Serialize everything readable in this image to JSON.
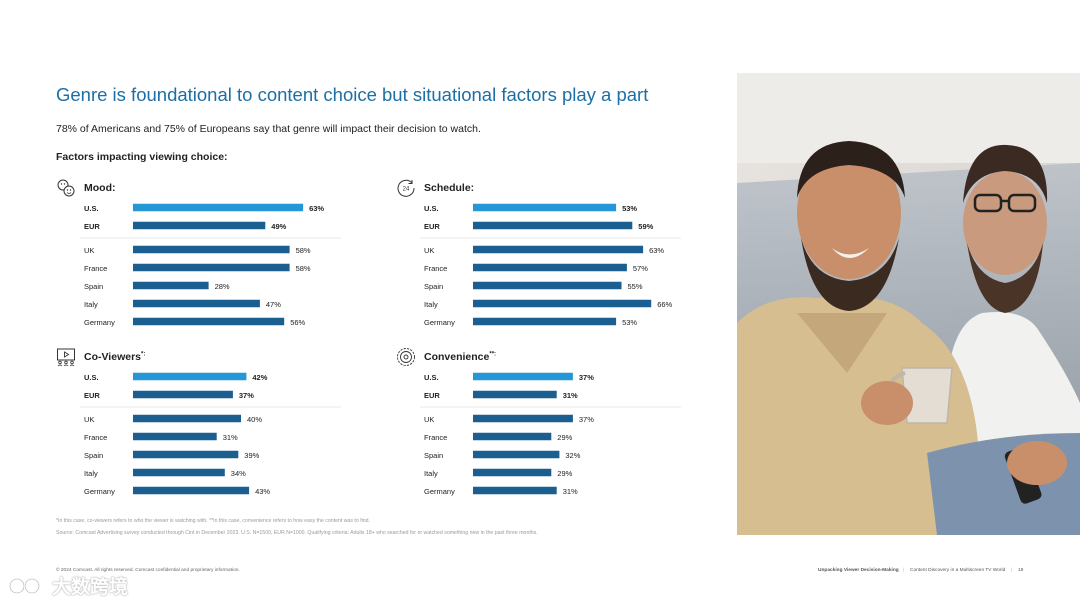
{
  "title": "Genre is foundational to content choice but situational factors play a part",
  "subtitle": "78% of Americans and 75% of Europeans say that genre will impact their decision to watch.",
  "factors_heading": "Factors impacting viewing choice:",
  "colors": {
    "accent": "#1c6fa6",
    "bar_primary": "#2697d6",
    "bar_secondary": "#1a5f8f"
  },
  "panels": [
    {
      "title": "Mood:",
      "title_mark": "",
      "icon": "mood-faces-icon"
    },
    {
      "title": "Schedule:",
      "title_mark": "",
      "icon": "schedule-24-icon"
    },
    {
      "title": "Co-Viewers",
      "title_mark": "*:",
      "icon": "co-viewers-tv-icon"
    },
    {
      "title": "Convenience",
      "title_mark": "**:",
      "icon": "convenience-gear-icon"
    }
  ],
  "chart_data": [
    {
      "type": "bar",
      "orientation": "horizontal",
      "title": "Mood:",
      "categories": [
        "U.S.",
        "EUR",
        "UK",
        "France",
        "Spain",
        "Italy",
        "Germany"
      ],
      "values": [
        63,
        49,
        58,
        58,
        28,
        47,
        56
      ],
      "labels": [
        "63%",
        "49%",
        "58%",
        "58%",
        "28%",
        "47%",
        "56%"
      ],
      "unit": "%"
    },
    {
      "type": "bar",
      "orientation": "horizontal",
      "title": "Schedule:",
      "categories": [
        "U.S.",
        "EUR",
        "UK",
        "France",
        "Spain",
        "Italy",
        "Germany"
      ],
      "values": [
        53,
        59,
        63,
        57,
        55,
        66,
        53
      ],
      "labels": [
        "53%",
        "59%",
        "63%",
        "57%",
        "55%",
        "66%",
        "53%"
      ],
      "unit": "%"
    },
    {
      "type": "bar",
      "orientation": "horizontal",
      "title": "Co-Viewers*:",
      "categories": [
        "U.S.",
        "EUR",
        "UK",
        "France",
        "Spain",
        "Italy",
        "Germany"
      ],
      "values": [
        42,
        37,
        40,
        31,
        39,
        34,
        43
      ],
      "labels": [
        "42%",
        "37%",
        "40%",
        "31%",
        "39%",
        "34%",
        "43%"
      ],
      "unit": "%"
    },
    {
      "type": "bar",
      "orientation": "horizontal",
      "title": "Convenience**:",
      "categories": [
        "U.S.",
        "EUR",
        "UK",
        "France",
        "Spain",
        "Italy",
        "Germany"
      ],
      "values": [
        37,
        31,
        37,
        29,
        32,
        29,
        31
      ],
      "labels": [
        "37%",
        "31%",
        "37%",
        "29%",
        "32%",
        "29%",
        "31%"
      ],
      "unit": "%"
    }
  ],
  "footnotes": {
    "line1": "*In this case, co-viewers refers to who the viewer is watching with. **In this case, convenience refers to how easy the content was to find.",
    "line2": "Source: Comcast Advertising survey conducted through Cint in December 2023. U.S. N=1500, EUR N=1000. Qualifying criteria: Adults 18+ who searched for or watched something new in the past three months."
  },
  "footer": {
    "left": "© 2024 Comcast. All rights reserved. Comcast confidential and proprietary information.",
    "section": "Unpacking Viewer Decision-Making",
    "doc_title": "Content Discovery in a Multiscreen TV World",
    "page": "18"
  },
  "watermark": "大数跨境",
  "photo": {
    "description_icon": "two-men-laughing-photo"
  }
}
